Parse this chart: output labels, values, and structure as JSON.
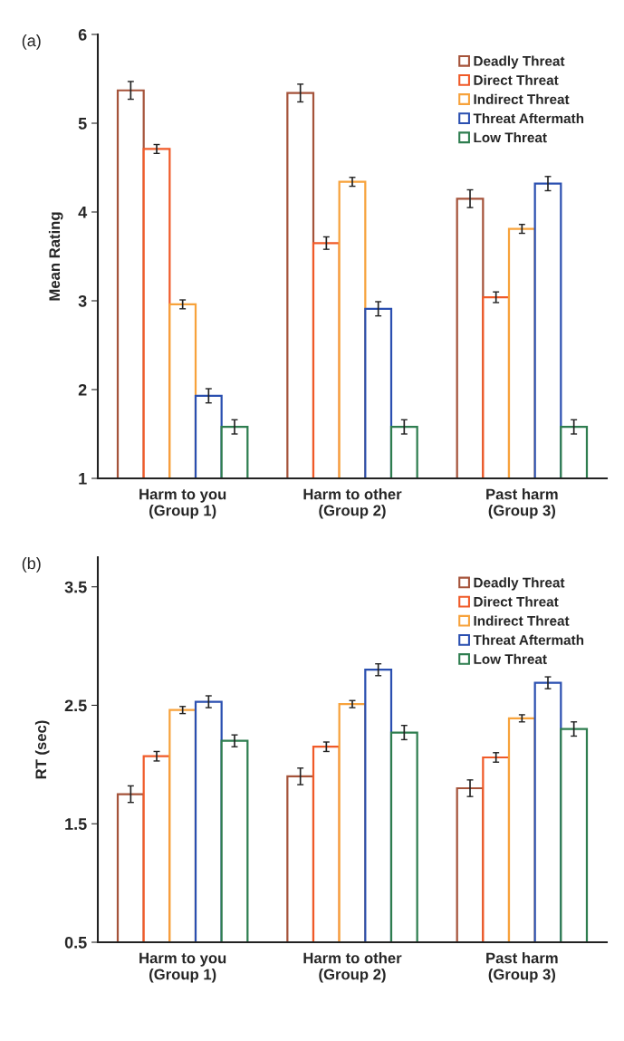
{
  "chart_data": [
    {
      "type": "bar",
      "ylabel": "Mean Rating",
      "annotations": [
        "(a)"
      ],
      "categories": [
        "Harm to you\n(Group 1)",
        "Harm to other\n(Group 2)",
        "Past harm\n(Group 3)"
      ],
      "ylim": [
        1,
        6
      ],
      "yticks": [
        1,
        2,
        3,
        4,
        5,
        6
      ],
      "grid": false,
      "legend": "top right",
      "series": [
        {
          "name": "Deadly Threat",
          "color": "#a5533a",
          "values": [
            5.37,
            5.34,
            4.15
          ],
          "errors": [
            0.1,
            0.1,
            0.1
          ]
        },
        {
          "name": "Direct Threat",
          "color": "#f05a28",
          "values": [
            4.71,
            3.65,
            3.04
          ],
          "errors": [
            0.05,
            0.07,
            0.06
          ]
        },
        {
          "name": "Indirect Threat",
          "color": "#f7a23b",
          "values": [
            2.96,
            4.34,
            3.81
          ],
          "errors": [
            0.05,
            0.05,
            0.05
          ]
        },
        {
          "name": "Threat Aftermath",
          "color": "#2a4fb0",
          "values": [
            1.93,
            2.91,
            4.32
          ],
          "errors": [
            0.08,
            0.08,
            0.08
          ]
        },
        {
          "name": "Low Threat",
          "color": "#2e7d4f",
          "values": [
            1.58,
            1.58,
            1.58
          ],
          "errors": [
            0.08,
            0.08,
            0.08
          ]
        }
      ]
    },
    {
      "type": "bar",
      "ylabel": "RT (sec)",
      "annotations": [
        "(b)"
      ],
      "categories": [
        "Harm to you\n(Group 1)",
        "Harm to other\n(Group 2)",
        "Past harm\n(Group 3)"
      ],
      "ylim": [
        0.5,
        3.75
      ],
      "yticks": [
        0.5,
        1.5,
        2.5,
        3.5
      ],
      "grid": false,
      "legend": "top right",
      "series": [
        {
          "name": "Deadly Threat",
          "color": "#a5533a",
          "values": [
            1.75,
            1.9,
            1.8
          ],
          "errors": [
            0.07,
            0.07,
            0.07
          ]
        },
        {
          "name": "Direct Threat",
          "color": "#f05a28",
          "values": [
            2.07,
            2.15,
            2.06
          ],
          "errors": [
            0.04,
            0.04,
            0.04
          ]
        },
        {
          "name": "Indirect Threat",
          "color": "#f7a23b",
          "values": [
            2.46,
            2.51,
            2.39
          ],
          "errors": [
            0.03,
            0.03,
            0.03
          ]
        },
        {
          "name": "Threat Aftermath",
          "color": "#2a4fb0",
          "values": [
            2.53,
            2.8,
            2.69
          ],
          "errors": [
            0.05,
            0.05,
            0.05
          ]
        },
        {
          "name": "Low Threat",
          "color": "#2e7d4f",
          "values": [
            2.2,
            2.27,
            2.3
          ],
          "errors": [
            0.05,
            0.06,
            0.06
          ]
        }
      ]
    }
  ]
}
